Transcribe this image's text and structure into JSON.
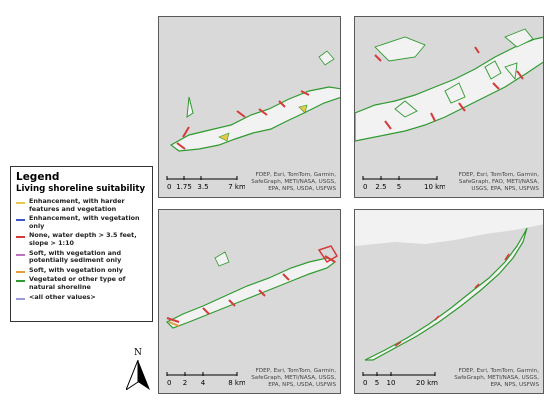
{
  "legend": {
    "title": "Legend",
    "subtitle": "Living shoreline suitability",
    "items": [
      {
        "label": "Enhancement, with harder features and vegetation",
        "color": "#e6c84a"
      },
      {
        "label": "Enhancement, with vegetation only",
        "color": "#3f56c9"
      },
      {
        "label": "None, water depth > 3.5 feet, slope > 1:10",
        "color": "#d63a3a"
      },
      {
        "label": "Soft, with vegetation and potentially sediment only",
        "color": "#c070c0"
      },
      {
        "label": "Soft, with vegetation only",
        "color": "#e79a3c"
      },
      {
        "label": "Vegetated or other type of natural shoreline",
        "color": "#2f9a2f"
      },
      {
        "label": "<all other values>",
        "color": "#9a9ad8"
      }
    ]
  },
  "north_arrow": {
    "letter": "N"
  },
  "panels": [
    {
      "id": "panel-1",
      "scale_ticks": [
        "0",
        "1.75",
        "3.5",
        "7 km"
      ],
      "attribution": [
        "FDEP, Esri, TomTom, Garmin,",
        "SafeGraph, METI/NASA, USGS,",
        "EPA, NPS, USDA, USFWS"
      ]
    },
    {
      "id": "panel-2",
      "scale_ticks": [
        "0",
        "2.5",
        "5",
        "10 km"
      ],
      "attribution": [
        "FDEP, Esri, TomTom, Garmin,",
        "SafeGraph, FAO, METI/NASA,",
        "USGS, EPA, NPS, USFWS"
      ]
    },
    {
      "id": "panel-3",
      "scale_ticks": [
        "0",
        "2",
        "4",
        "8 km"
      ],
      "attribution": [
        "FDEP, Esri, TomTom, Garmin,",
        "SafeGraph, METI/NASA, USGS,",
        "EPA, NPS, USDA, USFWS"
      ]
    },
    {
      "id": "panel-4",
      "scale_ticks": [
        "0",
        "5",
        "10",
        "20 km"
      ],
      "attribution": [
        "FDEP, Esri, TomTom, Garmin,",
        "SafeGraph, METI/NASA, USGS,",
        "EPA, NPS, USFWS"
      ]
    }
  ],
  "colors": {
    "water": "#d9d9d9",
    "land": "#f2f2f2",
    "vegetated": "#2f9a2f",
    "none": "#d63a3a",
    "soft_sediment": "#c070c0",
    "enh_hard": "#e6c84a"
  }
}
